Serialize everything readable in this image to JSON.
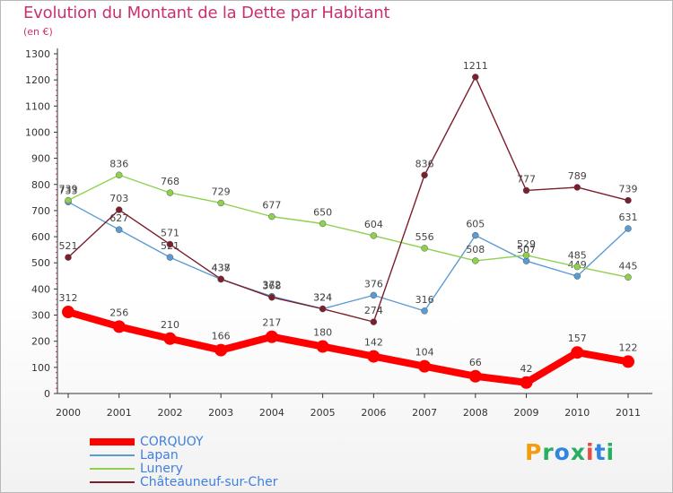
{
  "title": "Evolution du Montant de la Dette par Habitant",
  "subtitle": "(en €)",
  "logo": {
    "text": "Proxiti",
    "colors": [
      "#f39c12",
      "#27ae60",
      "#2e86de",
      "#27ae60",
      "#e74c3c",
      "#2e86de",
      "#27ae60"
    ]
  },
  "chart_data": {
    "type": "line",
    "categories": [
      "2000",
      "2001",
      "2002",
      "2003",
      "2004",
      "2005",
      "2006",
      "2007",
      "2008",
      "2009",
      "2010",
      "2011"
    ],
    "ylim": [
      0,
      1300
    ],
    "yticks": [
      "0",
      "100",
      "200",
      "300",
      "400",
      "500",
      "600",
      "700",
      "800",
      "900",
      "1000",
      "1100",
      "1200",
      "1300"
    ],
    "grid": false,
    "legend_position": "bottom-left",
    "series": [
      {
        "name": "CORQUOY",
        "color": "#ff0000",
        "values": [
          312,
          256,
          210,
          166,
          217,
          180,
          142,
          104,
          66,
          42,
          157,
          122
        ]
      },
      {
        "name": "Lapan",
        "color": "#5b9bd5",
        "values": [
          733,
          627,
          521,
          437,
          372,
          324,
          376,
          316,
          605,
          507,
          449,
          631
        ]
      },
      {
        "name": "Lunery",
        "color": "#8fd14f",
        "values": [
          739,
          836,
          768,
          729,
          677,
          650,
          604,
          556,
          508,
          529,
          485,
          445
        ]
      },
      {
        "name": "Châteauneuf-sur-Cher",
        "color": "#7a1f2b",
        "values": [
          521,
          703,
          571,
          438,
          368,
          324,
          274,
          836,
          1211,
          777,
          789,
          739
        ]
      }
    ]
  }
}
